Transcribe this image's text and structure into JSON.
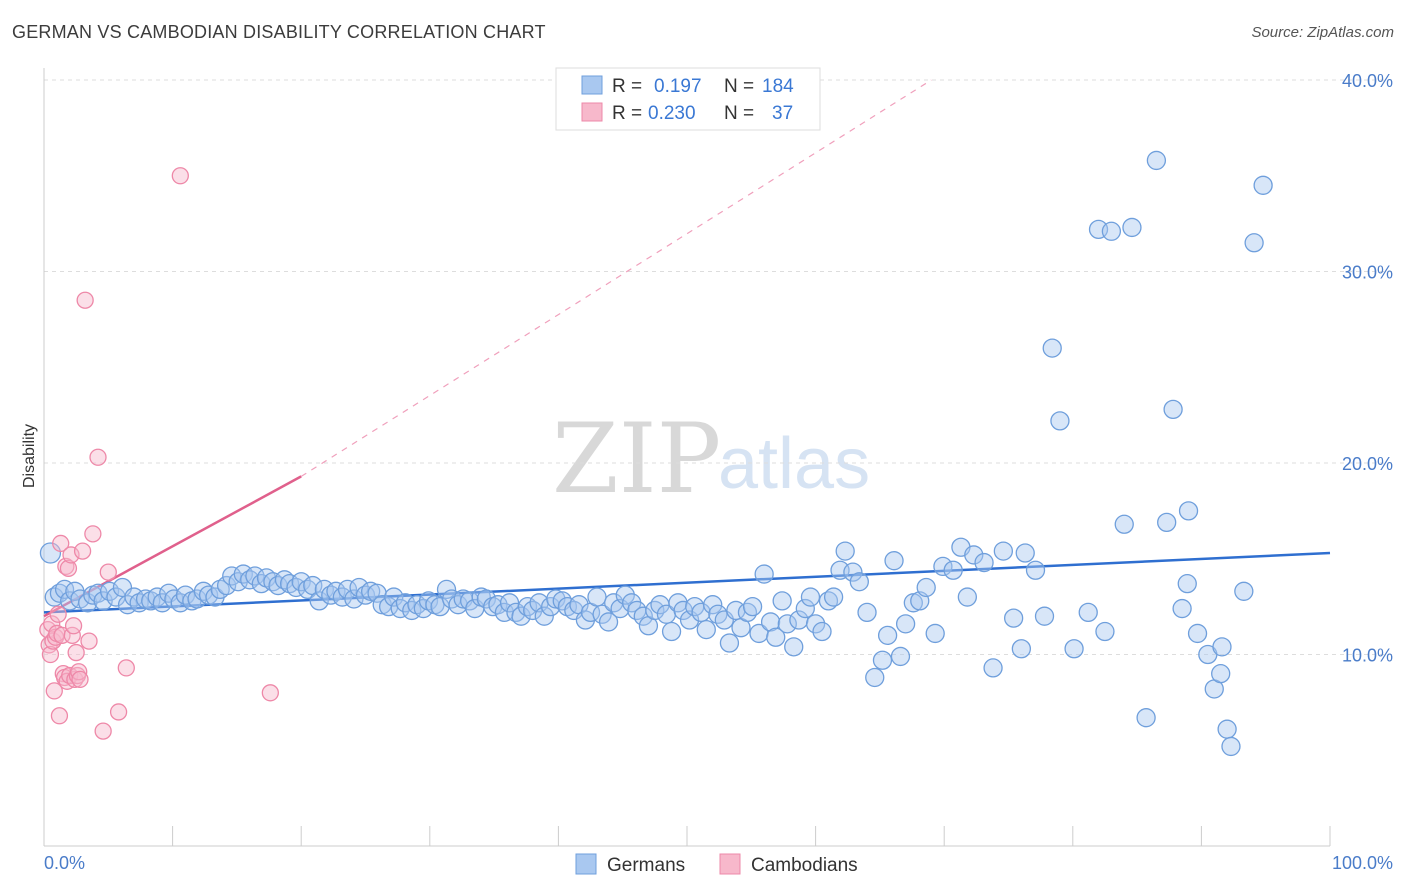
{
  "title": "GERMAN VS CAMBODIAN DISABILITY CORRELATION CHART",
  "source": "Source: ZipAtlas.com",
  "watermark": {
    "zip": "ZIP",
    "atlas": "atlas"
  },
  "legend": {
    "german": {
      "r_label": "R = ",
      "r_value": "0.197",
      "n_label": "N = ",
      "n_value": "184"
    },
    "cambodian": {
      "r_label": "R = ",
      "r_value": "0.230",
      "n_label": "N = ",
      "n_value": "37"
    }
  },
  "bottom_legend": {
    "german": "Germans",
    "cambodian": "Cambodians"
  },
  "colors": {
    "german_fill": "#a9c8f0",
    "german_stroke": "#6f9fdc",
    "german_line": "#2f6fd0",
    "cambodian_fill": "#f7b8cb",
    "cambodian_stroke": "#ee88a8",
    "cambodian_line": "#e0608c",
    "grid": "#dddddd",
    "tick_text": "#4a7cc9"
  },
  "chart_data": {
    "type": "scatter",
    "title": "GERMAN VS CAMBODIAN DISABILITY CORRELATION CHART",
    "xlabel": "",
    "ylabel": "Disability",
    "xlim": [
      0,
      100
    ],
    "ylim": [
      0,
      40
    ],
    "x_tick_labels": [
      "0.0%",
      "100.0%"
    ],
    "y_ticks": [
      10,
      20,
      30,
      40
    ],
    "y_tick_labels": [
      "10.0%",
      "20.0%",
      "30.0%",
      "40.0%"
    ],
    "grid": true,
    "legend_position": "top-center",
    "series": [
      {
        "name": "Germans",
        "r": 0.197,
        "n": 184,
        "trend": {
          "x": [
            0,
            100
          ],
          "y": [
            12.2,
            15.3
          ]
        },
        "points": [
          [
            0.5,
            15.3
          ],
          [
            0.8,
            13.0
          ],
          [
            1.2,
            13.2
          ],
          [
            1.6,
            13.4
          ],
          [
            2.0,
            12.8
          ],
          [
            2.4,
            13.3
          ],
          [
            2.8,
            12.9
          ],
          [
            3.4,
            12.7
          ],
          [
            3.8,
            13.1
          ],
          [
            4.2,
            13.2
          ],
          [
            4.6,
            12.8
          ],
          [
            5.1,
            13.3
          ],
          [
            5.6,
            13.0
          ],
          [
            6.1,
            13.5
          ],
          [
            6.5,
            12.6
          ],
          [
            7.0,
            13.0
          ],
          [
            7.4,
            12.7
          ],
          [
            7.9,
            12.9
          ],
          [
            8.3,
            12.8
          ],
          [
            8.8,
            13.0
          ],
          [
            9.2,
            12.7
          ],
          [
            9.7,
            13.2
          ],
          [
            10.1,
            12.9
          ],
          [
            10.6,
            12.7
          ],
          [
            11.0,
            13.1
          ],
          [
            11.5,
            12.8
          ],
          [
            11.9,
            12.9
          ],
          [
            12.4,
            13.3
          ],
          [
            12.8,
            13.1
          ],
          [
            13.3,
            13.0
          ],
          [
            13.7,
            13.4
          ],
          [
            14.2,
            13.6
          ],
          [
            14.6,
            14.1
          ],
          [
            15.1,
            13.8
          ],
          [
            15.5,
            14.2
          ],
          [
            16.0,
            13.9
          ],
          [
            16.4,
            14.1
          ],
          [
            16.9,
            13.7
          ],
          [
            17.3,
            14.0
          ],
          [
            17.8,
            13.8
          ],
          [
            18.2,
            13.6
          ],
          [
            18.7,
            13.9
          ],
          [
            19.1,
            13.7
          ],
          [
            19.6,
            13.5
          ],
          [
            20.0,
            13.8
          ],
          [
            20.5,
            13.4
          ],
          [
            20.9,
            13.6
          ],
          [
            21.4,
            12.8
          ],
          [
            21.8,
            13.4
          ],
          [
            22.3,
            13.1
          ],
          [
            22.7,
            13.3
          ],
          [
            23.2,
            13.0
          ],
          [
            23.6,
            13.4
          ],
          [
            24.1,
            12.9
          ],
          [
            24.5,
            13.5
          ],
          [
            25.0,
            13.1
          ],
          [
            25.4,
            13.3
          ],
          [
            25.9,
            13.2
          ],
          [
            26.3,
            12.6
          ],
          [
            26.8,
            12.5
          ],
          [
            27.2,
            13.0
          ],
          [
            27.7,
            12.4
          ],
          [
            28.1,
            12.7
          ],
          [
            28.6,
            12.3
          ],
          [
            29.0,
            12.6
          ],
          [
            29.5,
            12.4
          ],
          [
            29.9,
            12.8
          ],
          [
            30.4,
            12.6
          ],
          [
            30.8,
            12.5
          ],
          [
            31.3,
            13.4
          ],
          [
            31.7,
            12.9
          ],
          [
            32.2,
            12.6
          ],
          [
            32.6,
            12.9
          ],
          [
            33.1,
            12.8
          ],
          [
            33.5,
            12.4
          ],
          [
            34.0,
            13.0
          ],
          [
            34.4,
            12.9
          ],
          [
            34.9,
            12.5
          ],
          [
            35.3,
            12.6
          ],
          [
            35.8,
            12.2
          ],
          [
            36.2,
            12.7
          ],
          [
            36.7,
            12.2
          ],
          [
            37.1,
            12.0
          ],
          [
            37.6,
            12.5
          ],
          [
            38.0,
            12.3
          ],
          [
            38.5,
            12.7
          ],
          [
            38.9,
            12.0
          ],
          [
            39.4,
            12.5
          ],
          [
            39.8,
            12.9
          ],
          [
            40.3,
            12.8
          ],
          [
            40.7,
            12.5
          ],
          [
            41.2,
            12.3
          ],
          [
            41.6,
            12.6
          ],
          [
            42.1,
            11.8
          ],
          [
            42.5,
            12.2
          ],
          [
            43.0,
            13.0
          ],
          [
            43.4,
            12.1
          ],
          [
            43.9,
            11.7
          ],
          [
            44.3,
            12.7
          ],
          [
            44.8,
            12.4
          ],
          [
            45.2,
            13.1
          ],
          [
            45.7,
            12.7
          ],
          [
            46.1,
            12.3
          ],
          [
            46.6,
            12.0
          ],
          [
            47.0,
            11.5
          ],
          [
            47.5,
            12.3
          ],
          [
            47.9,
            12.6
          ],
          [
            48.4,
            12.1
          ],
          [
            48.8,
            11.2
          ],
          [
            49.3,
            12.7
          ],
          [
            49.7,
            12.3
          ],
          [
            50.2,
            11.8
          ],
          [
            50.6,
            12.5
          ],
          [
            51.1,
            12.2
          ],
          [
            51.5,
            11.3
          ],
          [
            52.0,
            12.6
          ],
          [
            52.4,
            12.1
          ],
          [
            52.9,
            11.8
          ],
          [
            53.3,
            10.6
          ],
          [
            53.8,
            12.3
          ],
          [
            54.2,
            11.4
          ],
          [
            54.7,
            12.2
          ],
          [
            55.1,
            12.5
          ],
          [
            55.6,
            11.1
          ],
          [
            56.0,
            14.2
          ],
          [
            56.5,
            11.7
          ],
          [
            56.9,
            10.9
          ],
          [
            57.4,
            12.8
          ],
          [
            57.8,
            11.6
          ],
          [
            58.3,
            10.4
          ],
          [
            58.7,
            11.8
          ],
          [
            59.2,
            12.4
          ],
          [
            59.6,
            13.0
          ],
          [
            60.0,
            11.6
          ],
          [
            60.5,
            11.2
          ],
          [
            61.0,
            12.8
          ],
          [
            61.4,
            13.0
          ],
          [
            61.9,
            14.4
          ],
          [
            62.3,
            15.4
          ],
          [
            62.9,
            14.3
          ],
          [
            63.4,
            13.8
          ],
          [
            64.0,
            12.2
          ],
          [
            64.6,
            8.8
          ],
          [
            65.2,
            9.7
          ],
          [
            65.6,
            11.0
          ],
          [
            66.1,
            14.9
          ],
          [
            66.6,
            9.9
          ],
          [
            67.0,
            11.6
          ],
          [
            67.6,
            12.7
          ],
          [
            68.1,
            12.8
          ],
          [
            68.6,
            13.5
          ],
          [
            69.3,
            11.1
          ],
          [
            69.9,
            14.6
          ],
          [
            70.7,
            14.4
          ],
          [
            71.3,
            15.6
          ],
          [
            71.8,
            13.0
          ],
          [
            72.3,
            15.2
          ],
          [
            73.1,
            14.8
          ],
          [
            73.8,
            9.3
          ],
          [
            74.6,
            15.4
          ],
          [
            75.4,
            11.9
          ],
          [
            76.0,
            10.3
          ],
          [
            76.3,
            15.3
          ],
          [
            77.1,
            14.4
          ],
          [
            77.8,
            12.0
          ],
          [
            78.4,
            26.0
          ],
          [
            79.0,
            22.2
          ],
          [
            80.1,
            10.3
          ],
          [
            81.2,
            12.2
          ],
          [
            82.0,
            32.2
          ],
          [
            82.5,
            11.2
          ],
          [
            83.0,
            32.1
          ],
          [
            84.0,
            16.8
          ],
          [
            84.6,
            32.3
          ],
          [
            85.7,
            6.7
          ],
          [
            86.5,
            35.8
          ],
          [
            87.3,
            16.9
          ],
          [
            87.8,
            22.8
          ],
          [
            88.5,
            12.4
          ],
          [
            88.9,
            13.7
          ],
          [
            89.0,
            17.5
          ],
          [
            89.7,
            11.1
          ],
          [
            90.5,
            10.0
          ],
          [
            91.0,
            8.2
          ],
          [
            91.5,
            9.0
          ],
          [
            91.6,
            10.4
          ],
          [
            92.0,
            6.1
          ],
          [
            92.3,
            5.2
          ],
          [
            93.3,
            13.3
          ],
          [
            94.1,
            31.5
          ],
          [
            94.8,
            34.5
          ]
        ]
      },
      {
        "name": "Cambodians",
        "r": 0.23,
        "n": 37,
        "trend": {
          "x": [
            0,
            20
          ],
          "y": [
            12.0,
            19.3
          ]
        },
        "trend_extended": {
          "x": [
            20,
            69
          ],
          "y": [
            19.3,
            40.0
          ]
        },
        "points": [
          [
            0.3,
            11.3
          ],
          [
            0.4,
            10.5
          ],
          [
            0.5,
            10.0
          ],
          [
            0.6,
            11.6
          ],
          [
            0.7,
            10.7
          ],
          [
            0.8,
            8.1
          ],
          [
            0.9,
            10.9
          ],
          [
            1.0,
            11.1
          ],
          [
            1.1,
            12.1
          ],
          [
            1.2,
            6.8
          ],
          [
            1.3,
            15.8
          ],
          [
            1.4,
            11.0
          ],
          [
            1.5,
            9.0
          ],
          [
            1.6,
            8.8
          ],
          [
            1.7,
            14.6
          ],
          [
            1.8,
            8.6
          ],
          [
            1.9,
            14.5
          ],
          [
            2.0,
            8.9
          ],
          [
            2.1,
            15.2
          ],
          [
            2.2,
            11.0
          ],
          [
            2.3,
            11.5
          ],
          [
            2.4,
            8.7
          ],
          [
            2.5,
            10.1
          ],
          [
            2.6,
            8.9
          ],
          [
            2.7,
            9.1
          ],
          [
            2.8,
            8.7
          ],
          [
            3.0,
            15.4
          ],
          [
            3.2,
            28.5
          ],
          [
            3.5,
            10.7
          ],
          [
            3.8,
            16.3
          ],
          [
            4.2,
            20.3
          ],
          [
            4.6,
            6.0
          ],
          [
            5.0,
            14.3
          ],
          [
            5.8,
            7.0
          ],
          [
            6.4,
            9.3
          ],
          [
            10.6,
            35.0
          ],
          [
            17.6,
            8.0
          ]
        ]
      }
    ]
  }
}
